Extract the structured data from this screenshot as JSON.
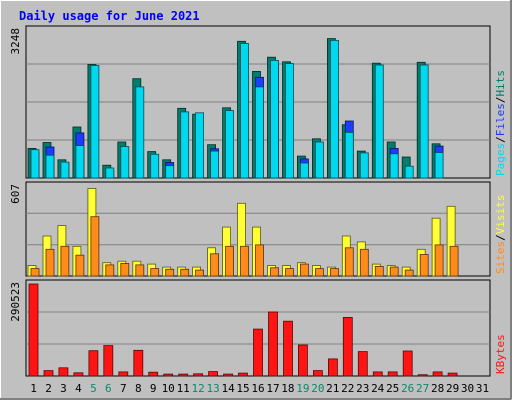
{
  "title": "Daily usage for June 2021",
  "colors": {
    "background": "#c0c0c0",
    "plot_bg": "#ffffff",
    "grid": "#7f7f7f",
    "title": "#0000ff",
    "hits": "#00c8e6",
    "hits_back": "#007d6c",
    "files": "#1c3cff",
    "pages": "#00d8f0",
    "visits": "#ffff33",
    "sites": "#ff8c1a",
    "kbytes": "#ff1414",
    "weekend_tick": "#0a8a6a",
    "weekday_tick": "#000000",
    "label_slash": "#000000"
  },
  "chart_data": [
    {
      "type": "bar",
      "panel": "hits-files-pages",
      "y_max_label": "3248",
      "ymax": 3248,
      "categories": [
        "1",
        "2",
        "3",
        "4",
        "5",
        "6",
        "7",
        "8",
        "9",
        "10",
        "11",
        "12",
        "13",
        "14",
        "15",
        "16",
        "17",
        "18",
        "19",
        "20",
        "21",
        "22",
        "23",
        "24",
        "25",
        "26",
        "27",
        "28",
        "29",
        "30",
        "31"
      ],
      "weekend_days": [
        "5",
        "6",
        "12",
        "13",
        "19",
        "20",
        "26",
        "27"
      ],
      "right_labels": [
        {
          "text": "Pages",
          "color": "#00d8f0"
        },
        {
          "text": "/",
          "color": "#000000"
        },
        {
          "text": "Files",
          "color": "#1c3cff"
        },
        {
          "text": "/",
          "color": "#000000"
        },
        {
          "text": "Hits",
          "color": "#007d6c"
        }
      ],
      "series": [
        {
          "name": "Hits",
          "values": [
            650,
            780,
            400,
            1120,
            2490,
            280,
            790,
            2180,
            580,
            400,
            1530,
            1400,
            730,
            1540,
            3000,
            2340,
            2650,
            2550,
            480,
            860,
            3060,
            1170,
            590,
            2520,
            790,
            460,
            2540,
            750,
            0,
            0,
            0
          ]
        },
        {
          "name": "Files",
          "values": [
            560,
            680,
            330,
            990,
            0,
            170,
            0,
            0,
            0,
            340,
            0,
            0,
            640,
            0,
            0,
            2210,
            2490,
            0,
            420,
            0,
            1720,
            1250,
            0,
            0,
            650,
            0,
            0,
            700,
            0,
            0,
            0
          ]
        },
        {
          "name": "Pages",
          "values": [
            620,
            500,
            350,
            710,
            2470,
            220,
            690,
            2000,
            520,
            270,
            1450,
            1430,
            590,
            1480,
            2950,
            2000,
            2580,
            2510,
            330,
            790,
            3020,
            1000,
            550,
            2480,
            530,
            260,
            2480,
            560,
            0,
            0,
            0
          ]
        }
      ]
    },
    {
      "type": "bar",
      "panel": "visits-sites",
      "y_max_label": "607",
      "ymax": 607,
      "categories": [
        "1",
        "2",
        "3",
        "4",
        "5",
        "6",
        "7",
        "8",
        "9",
        "10",
        "11",
        "12",
        "13",
        "14",
        "15",
        "16",
        "17",
        "18",
        "19",
        "20",
        "21",
        "22",
        "23",
        "24",
        "25",
        "26",
        "27",
        "28",
        "29",
        "30",
        "31"
      ],
      "right_labels": [
        {
          "text": "Sites",
          "color": "#ff8c1a"
        },
        {
          "text": "/",
          "color": "#000000"
        },
        {
          "text": "Visits",
          "color": "#ffff33"
        }
      ],
      "series": [
        {
          "name": "Visits",
          "values": [
            70,
            270,
            340,
            200,
            590,
            90,
            100,
            100,
            80,
            60,
            60,
            60,
            190,
            330,
            490,
            330,
            70,
            70,
            90,
            70,
            60,
            270,
            230,
            80,
            70,
            60,
            180,
            390,
            470,
            0,
            0
          ]
        },
        {
          "name": "Sites",
          "values": [
            50,
            180,
            200,
            140,
            400,
            75,
            85,
            75,
            50,
            45,
            45,
            40,
            150,
            200,
            200,
            210,
            55,
            50,
            80,
            50,
            50,
            190,
            180,
            65,
            60,
            40,
            145,
            210,
            200,
            0,
            0
          ]
        }
      ]
    },
    {
      "type": "bar",
      "panel": "kbytes",
      "y_max_label": "290523",
      "ymax": 290523,
      "categories": [
        "1",
        "2",
        "3",
        "4",
        "5",
        "6",
        "7",
        "8",
        "9",
        "10",
        "11",
        "12",
        "13",
        "14",
        "15",
        "16",
        "17",
        "18",
        "19",
        "20",
        "21",
        "22",
        "23",
        "24",
        "25",
        "26",
        "27",
        "28",
        "29",
        "30",
        "31"
      ],
      "right_labels": [
        {
          "text": "KBytes",
          "color": "#ff1414"
        }
      ],
      "series": [
        {
          "name": "KBytes",
          "values": [
            290523,
            17000,
            26000,
            10000,
            80000,
            96000,
            13000,
            81000,
            12000,
            6000,
            6000,
            7000,
            14000,
            6000,
            9000,
            148000,
            202000,
            173000,
            98000,
            17000,
            54000,
            185000,
            77000,
            13000,
            13000,
            79000,
            4000,
            13000,
            9000,
            0,
            0
          ]
        }
      ]
    }
  ]
}
